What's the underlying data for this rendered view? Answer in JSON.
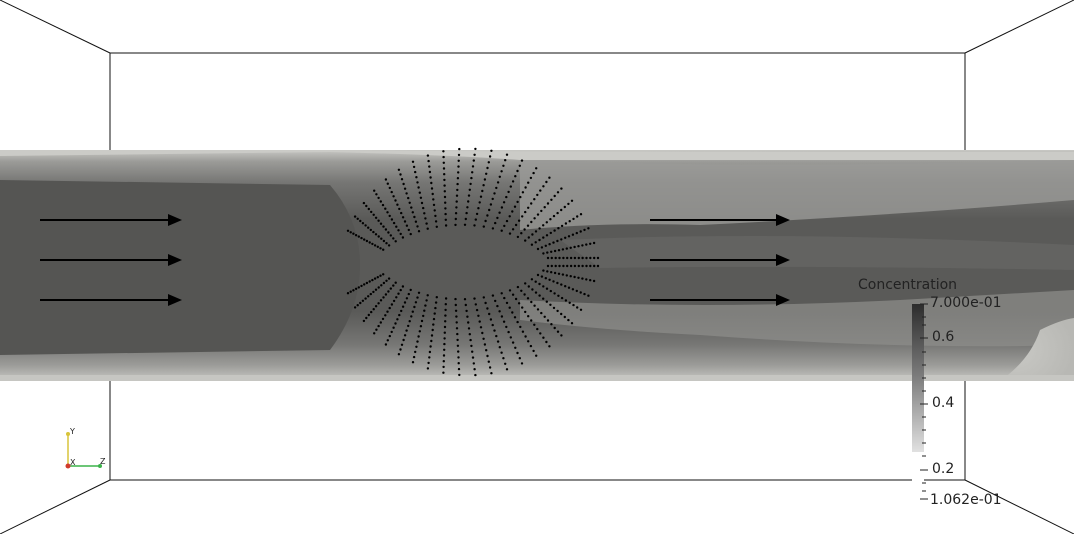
{
  "colorbar": {
    "title": "Concentration",
    "max_label": "7.000e-01",
    "min_label": "1.062e-01",
    "tick_labels": [
      "0.6",
      "0.4",
      "0.2"
    ],
    "max_value": 0.7,
    "min_value": 0.1062,
    "tick_values": [
      0.6,
      0.4,
      0.2
    ],
    "dark_color": "#2c2c2c",
    "light_color": "#e1e1e1"
  },
  "axes_triad": {
    "x_label": "X",
    "y_label": "Y",
    "z_label": "Z",
    "x_color": "#d03b2b",
    "y_color": "#d8c43a",
    "z_color": "#3bb34a"
  },
  "flow_arrows": {
    "count_left": 3,
    "count_right": 3,
    "color": "#000000"
  },
  "particles": {
    "color": "#000000"
  }
}
